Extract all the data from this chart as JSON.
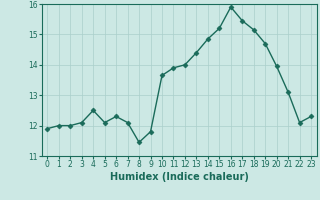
{
  "x": [
    0,
    1,
    2,
    3,
    4,
    5,
    6,
    7,
    8,
    9,
    10,
    11,
    12,
    13,
    14,
    15,
    16,
    17,
    18,
    19,
    20,
    21,
    22,
    23
  ],
  "y": [
    11.9,
    12.0,
    12.0,
    12.1,
    12.5,
    12.1,
    12.3,
    12.1,
    11.45,
    11.8,
    13.65,
    13.9,
    14.0,
    14.4,
    14.85,
    15.2,
    15.9,
    15.45,
    15.15,
    14.7,
    13.95,
    13.1,
    12.1,
    12.3
  ],
  "line_color": "#1a6b5a",
  "marker": "D",
  "marker_size": 2.5,
  "bg_color": "#cce8e4",
  "grid_color": "#aacfcb",
  "xlabel": "Humidex (Indice chaleur)",
  "xlim": [
    -0.5,
    23.5
  ],
  "ylim": [
    11.0,
    16.0
  ],
  "yticks": [
    11,
    12,
    13,
    14,
    15,
    16
  ],
  "xticks": [
    0,
    1,
    2,
    3,
    4,
    5,
    6,
    7,
    8,
    9,
    10,
    11,
    12,
    13,
    14,
    15,
    16,
    17,
    18,
    19,
    20,
    21,
    22,
    23
  ],
  "tick_fontsize": 5.5,
  "xlabel_fontsize": 7,
  "linewidth": 1.0
}
